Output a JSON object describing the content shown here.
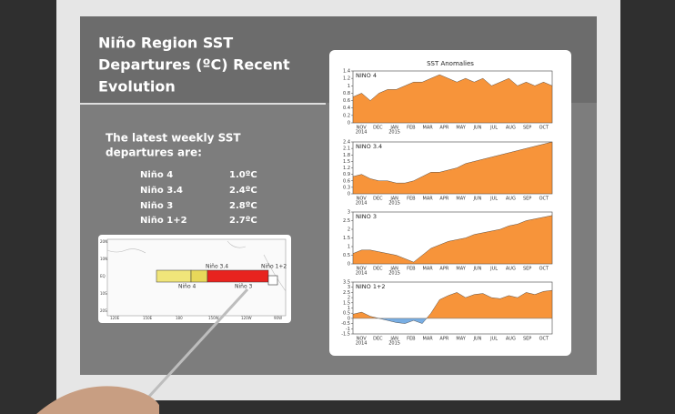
{
  "slide": {
    "title": [
      "Niño Region SST",
      "Departures (ºC) Recent",
      "Evolution"
    ],
    "intro": [
      "The latest weekly SST",
      "departures are:"
    ],
    "departures": [
      {
        "region": "Niño 4",
        "value": "1.0ºC"
      },
      {
        "region": "Niño 3.4",
        "value": "2.4ºC"
      },
      {
        "region": "Niño 3",
        "value": "2.8ºC"
      },
      {
        "region": "Niño 1+2",
        "value": "2.7ºC"
      }
    ],
    "map": {
      "regions": [
        "Niño 3.4",
        "Niño 4",
        "Niño 3",
        "Niño 1+2"
      ],
      "lat_labels": [
        "20N",
        "10N",
        "EQ",
        "10S",
        "20S"
      ],
      "lon_labels": [
        "120E",
        "150E",
        "180",
        "150W",
        "120W",
        "90W"
      ]
    },
    "chart": {
      "title": "SST Anomalies",
      "colors": {
        "positive": "#f7943a",
        "negative": "#79aee3"
      },
      "months": [
        {
          "month": "NOV",
          "year": "2014"
        },
        {
          "month": "DEC"
        },
        {
          "month": "JAN",
          "year": "2015"
        },
        {
          "month": "FEB"
        },
        {
          "month": "MAR"
        },
        {
          "month": "APR"
        },
        {
          "month": "MAY"
        },
        {
          "month": "JUN"
        },
        {
          "month": "JUL"
        },
        {
          "month": "AUG"
        },
        {
          "month": "SEP"
        },
        {
          "month": "OCT"
        }
      ],
      "panels": [
        {
          "name": "NINO 4",
          "ylim": [
            0,
            1.4
          ],
          "yticks": [
            0,
            0.2,
            0.4,
            0.6,
            0.8,
            1,
            1.2,
            1.4
          ],
          "values": [
            0.7,
            0.8,
            0.6,
            0.8,
            0.9,
            0.9,
            1.0,
            1.1,
            1.1,
            1.2,
            1.3,
            1.2,
            1.1,
            1.2,
            1.1,
            1.2,
            1.0,
            1.1,
            1.2,
            1.0,
            1.1,
            1.0,
            1.1,
            1.0
          ]
        },
        {
          "name": "NINO 3.4",
          "ylim": [
            0,
            2.4
          ],
          "yticks": [
            0,
            0.3,
            0.6,
            0.9,
            1.2,
            1.5,
            1.8,
            2.1,
            2.4
          ],
          "values": [
            0.8,
            0.9,
            0.7,
            0.6,
            0.6,
            0.5,
            0.5,
            0.6,
            0.8,
            1.0,
            1.0,
            1.1,
            1.2,
            1.4,
            1.5,
            1.6,
            1.7,
            1.8,
            1.9,
            2.0,
            2.1,
            2.2,
            2.3,
            2.4
          ]
        },
        {
          "name": "NINO 3",
          "ylim": [
            0,
            3
          ],
          "yticks": [
            0,
            0.5,
            1,
            1.5,
            2,
            2.5,
            3
          ],
          "values": [
            0.6,
            0.8,
            0.8,
            0.7,
            0.6,
            0.5,
            0.3,
            0.1,
            0.5,
            0.9,
            1.1,
            1.3,
            1.4,
            1.5,
            1.7,
            1.8,
            1.9,
            2.0,
            2.2,
            2.3,
            2.5,
            2.6,
            2.7,
            2.8
          ]
        },
        {
          "name": "NINO 1+2",
          "ylim": [
            -1.5,
            3.5
          ],
          "yticks": [
            -1.5,
            -1,
            -0.5,
            0,
            0.5,
            1,
            1.5,
            2,
            2.5,
            3,
            3.5
          ],
          "values": [
            0.4,
            0.6,
            0.2,
            0,
            -0.2,
            -0.4,
            -0.5,
            -0.2,
            -0.5,
            0.5,
            1.8,
            2.2,
            2.5,
            2.0,
            2.3,
            2.4,
            2.0,
            1.9,
            2.2,
            2.0,
            2.5,
            2.3,
            2.6,
            2.7
          ]
        }
      ]
    }
  }
}
